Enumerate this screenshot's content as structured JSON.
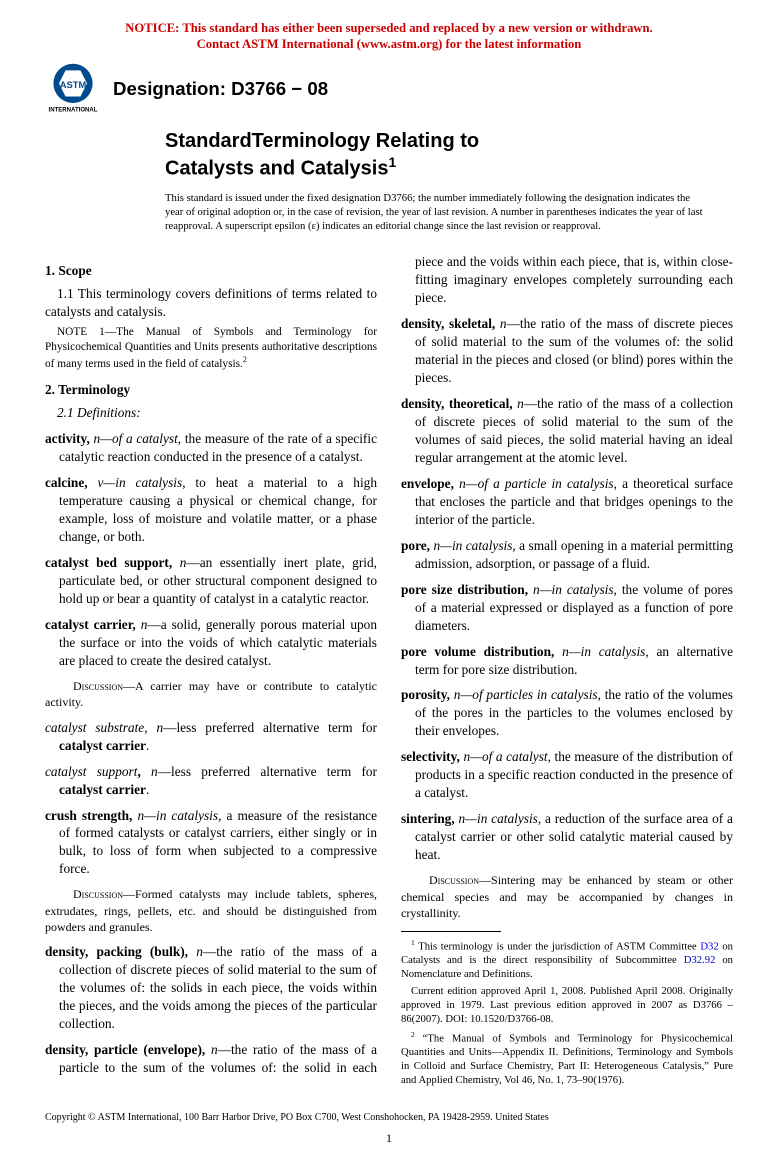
{
  "notice": {
    "line1": "NOTICE: This standard has either been superseded and replaced by a new version or withdrawn.",
    "line2": "Contact ASTM International (www.astm.org) for the latest information"
  },
  "designation": "Designation: D3766 − 08",
  "title": {
    "line1": "StandardTerminology Relating to",
    "line2": "Catalysts and Catalysis"
  },
  "title_sup": "1",
  "issue": "This standard is issued under the fixed designation D3766; the number immediately following the designation indicates the year of original adoption or, in the case of revision, the year of last revision. A number in parentheses indicates the year of last reapproval. A superscript epsilon (ε) indicates an editorial change since the last revision or reapproval.",
  "sections": {
    "scope_head": "1. Scope",
    "scope_para": "1.1 This terminology covers definitions of terms related to catalysts and catalysis.",
    "scope_note": "NOTE 1—The Manual of Symbols and Terminology for Physicochemical Quantities and Units presents authoritative descriptions of many terms used in the field of catalysis.",
    "scope_note_sup": "2",
    "term_head": "2. Terminology",
    "defs_head": "2.1 Definitions:"
  },
  "defs": [
    {
      "term": "activity,",
      "pos": "n",
      "context": "—of a catalyst,",
      "body": " the measure of the rate of a specific catalytic reaction conducted in the presence of a catalyst."
    },
    {
      "term": "calcine,",
      "pos": "v",
      "context": "—in catalysis",
      "body": ", to heat a material to a high temperature causing a physical or chemical change, for example, loss of moisture and volatile matter, or a phase change, or both."
    },
    {
      "term": "catalyst bed support,",
      "pos": "n",
      "body": "—an essentially inert plate, grid, particulate bed, or other structural component designed to hold up or bear a quantity of catalyst in a catalytic reactor."
    },
    {
      "term": "catalyst carrier,",
      "pos": "n",
      "body": "—a solid, generally porous material upon the surface or into the voids of which catalytic materials are placed to create the desired catalyst.",
      "disc": "—A carrier may have or contribute to catalytic activity."
    },
    {
      "term_it": "catalyst substrate",
      "comma": ",",
      "pos": "n",
      "body": "—less preferred alternative term for ",
      "bold_tail": "catalyst carrier",
      "tail": "."
    },
    {
      "term_it": "catalyst support",
      "bold_comma": ",",
      "pos": "n",
      "body": "—less preferred alternative term for ",
      "bold_tail": "catalyst carrier",
      "tail": "."
    },
    {
      "term": "crush strength,",
      "pos": "n",
      "context": "—in catalysis",
      "body": ", a measure of the resistance of formed catalysts or catalyst carriers, either singly or in bulk, to loss of form when subjected to a compressive force.",
      "disc": "—Formed catalysts may include tablets, spheres, extrudates, rings, pellets, etc. and should be distinguished from powders and granules."
    },
    {
      "term": "density, packing (bulk),",
      "pos": "n",
      "body": "—the ratio of the mass of a collection of discrete pieces of solid material to the sum of the volumes of: the solids in each piece, the voids within the pieces, and the voids among the pieces of the particular collection."
    },
    {
      "term": "density, particle (envelope),",
      "pos": "n",
      "body": "—the ratio of the mass of a particle to the sum of the volumes of: the solid in each piece and the voids within each piece, that is, within close-fitting imaginary envelopes completely surrounding each piece."
    },
    {
      "term": "density, skeletal,",
      "pos": "n",
      "body": "—the ratio of the mass of discrete pieces of solid material to the sum of the volumes of: the solid material in the pieces and closed (or blind) pores within the pieces."
    },
    {
      "term": "density, theoretical,",
      "pos": "n",
      "body": "—the ratio of the mass of a collection of discrete pieces of solid material to the sum of the volumes of said pieces, the solid material having an ideal regular arrangement at the atomic level."
    },
    {
      "term": "envelope,",
      "pos": "n",
      "context": "—of a particle in catalysis",
      "body": ", a theoretical surface that encloses the particle and that bridges openings to the interior of the particle."
    },
    {
      "term": "pore,",
      "pos": "n",
      "context": "—in catalysis",
      "body": ", a small opening in a material permitting admission, adsorption, or passage of a fluid."
    },
    {
      "term": "pore size distribution,",
      "pos": "n",
      "context": "—in catalysis",
      "body": ", the volume of pores of a material expressed or displayed as a function of pore diameters."
    },
    {
      "term": "pore volume distribution,",
      "pos": "n",
      "context": "—in catalysis",
      "body": ", an alternative term for pore size distribution."
    },
    {
      "term": "porosity,",
      "pos": "n",
      "context": "—of particles in catalysis",
      "body": ", the ratio of the volumes of the pores in the particles to the volumes enclosed by their envelopes."
    },
    {
      "term": "selectivity,",
      "pos": "n",
      "context": "—of a catalyst",
      "body": ", the measure of the distribution of products in a specific reaction conducted in the presence of a catalyst."
    },
    {
      "term": "sintering,",
      "pos": "n",
      "context": "—in catalysis",
      "body": ", a reduction of the surface area of a catalyst carrier or other solid catalytic material caused by heat.",
      "disc": "—Sintering may be enhanced by steam or other chemical species and may be accompanied by changes in crystallinity."
    }
  ],
  "footnotes": {
    "f1a": " This terminology is under the jurisdiction of ASTM Committee ",
    "f1link1": "D32",
    "f1b": " on Catalysts and is the direct responsibility of Subcommittee ",
    "f1link2": "D32.92",
    "f1c": " on Nomenclature and Definitions.",
    "f1d": "Current edition approved April 1, 2008. Published April 2008. Originally approved in 1979. Last previous edition approved in 2007 as D3766 – 86(2007). DOI: 10.1520/D3766-08.",
    "f2": " “The Manual of Symbols and Terminology for Physicochemical Quantities and Units—Appendix II. Definitions, Terminology and Symbols in Colloid and Surface Chemistry, Part II: Heterogeneous Catalysis,” Pure and Applied Chemistry, Vol 46, No. 1, 73–90(1976)."
  },
  "copyright": "Copyright © ASTM International, 100 Barr Harbor Drive, PO Box C700, West Conshohocken, PA 19428-2959. United States",
  "page_number": "1",
  "disc_label": "Discussion"
}
